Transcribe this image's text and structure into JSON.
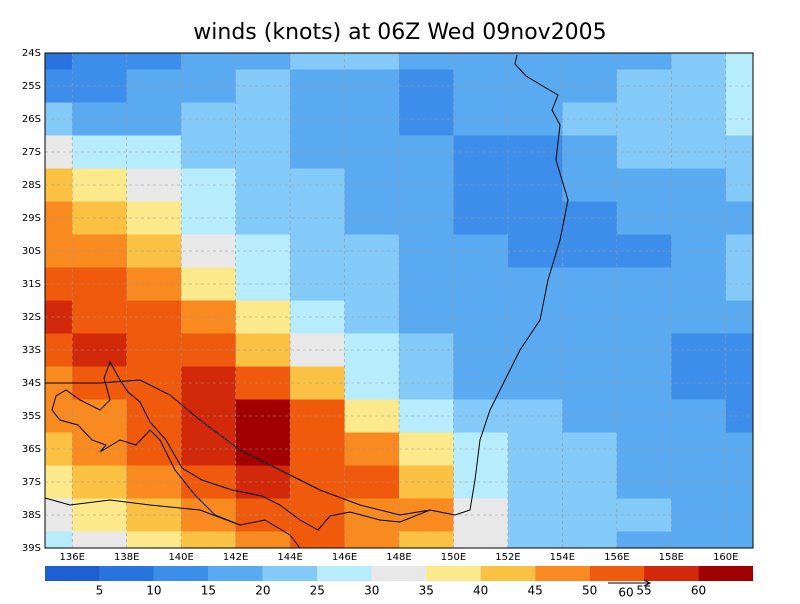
{
  "chart_data": {
    "type": "heatmap",
    "title": "winds (knots) at 06Z Wed 09nov2005",
    "x": [
      135,
      137,
      139,
      141,
      143,
      145,
      147,
      149,
      151,
      153,
      155,
      157,
      159,
      161
    ],
    "y": [
      -24,
      -25,
      -26,
      -27,
      -28,
      -29,
      -30,
      -31,
      -32,
      -33,
      -34,
      -35,
      -36,
      -37,
      -38,
      -39
    ],
    "values": [
      [
        8,
        10,
        12,
        15,
        18,
        20,
        22,
        18,
        15,
        15,
        15,
        18,
        22,
        25
      ],
      [
        10,
        12,
        15,
        18,
        20,
        18,
        15,
        12,
        15,
        15,
        18,
        20,
        22,
        25
      ],
      [
        22,
        18,
        18,
        20,
        20,
        18,
        15,
        12,
        15,
        15,
        20,
        20,
        22,
        25
      ],
      [
        32,
        28,
        25,
        22,
        20,
        18,
        15,
        15,
        12,
        12,
        18,
        20,
        20,
        22
      ],
      [
        42,
        38,
        32,
        28,
        22,
        20,
        18,
        15,
        12,
        10,
        15,
        18,
        18,
        20
      ],
      [
        45,
        42,
        36,
        28,
        22,
        20,
        18,
        15,
        12,
        10,
        12,
        15,
        15,
        18
      ],
      [
        48,
        45,
        40,
        30,
        25,
        22,
        20,
        18,
        15,
        12,
        12,
        12,
        15,
        20
      ],
      [
        52,
        50,
        45,
        38,
        28,
        22,
        20,
        18,
        15,
        15,
        15,
        15,
        18,
        20
      ],
      [
        55,
        52,
        50,
        45,
        35,
        25,
        22,
        18,
        18,
        18,
        18,
        15,
        15,
        15
      ],
      [
        52,
        55,
        52,
        50,
        42,
        30,
        25,
        20,
        18,
        18,
        18,
        15,
        12,
        12
      ],
      [
        48,
        52,
        52,
        58,
        52,
        40,
        28,
        22,
        18,
        18,
        18,
        15,
        12,
        10
      ],
      [
        45,
        48,
        52,
        55,
        60,
        50,
        38,
        28,
        22,
        20,
        18,
        18,
        15,
        12
      ],
      [
        40,
        45,
        50,
        55,
        62,
        52,
        48,
        35,
        25,
        20,
        20,
        18,
        15,
        15
      ],
      [
        35,
        40,
        48,
        52,
        55,
        52,
        50,
        40,
        28,
        20,
        20,
        18,
        18,
        15
      ],
      [
        30,
        35,
        40,
        45,
        52,
        52,
        48,
        45,
        30,
        22,
        20,
        20,
        18,
        18
      ],
      [
        28,
        32,
        38,
        42,
        48,
        50,
        45,
        40,
        30,
        22,
        20,
        18,
        18,
        18
      ]
    ],
    "xlim": [
      135,
      161
    ],
    "ylim": [
      -39,
      -24
    ],
    "xticks": [
      {
        "value": 136,
        "label": "136E"
      },
      {
        "value": 138,
        "label": "138E"
      },
      {
        "value": 140,
        "label": "140E"
      },
      {
        "value": 142,
        "label": "142E"
      },
      {
        "value": 144,
        "label": "144E"
      },
      {
        "value": 146,
        "label": "146E"
      },
      {
        "value": 148,
        "label": "148E"
      },
      {
        "value": 150,
        "label": "150E"
      },
      {
        "value": 152,
        "label": "152E"
      },
      {
        "value": 154,
        "label": "154E"
      },
      {
        "value": 156,
        "label": "156E"
      },
      {
        "value": 158,
        "label": "158E"
      },
      {
        "value": 160,
        "label": "160E"
      }
    ],
    "yticks": [
      {
        "value": -24,
        "label": "24S"
      },
      {
        "value": -25,
        "label": "25S"
      },
      {
        "value": -26,
        "label": "26S"
      },
      {
        "value": -27,
        "label": "27S"
      },
      {
        "value": -28,
        "label": "28S"
      },
      {
        "value": -29,
        "label": "29S"
      },
      {
        "value": -30,
        "label": "30S"
      },
      {
        "value": -31,
        "label": "31S"
      },
      {
        "value": -32,
        "label": "32S"
      },
      {
        "value": -33,
        "label": "33S"
      },
      {
        "value": -34,
        "label": "34S"
      },
      {
        "value": -35,
        "label": "35S"
      },
      {
        "value": -36,
        "label": "36S"
      },
      {
        "value": -37,
        "label": "37S"
      },
      {
        "value": -38,
        "label": "38S"
      },
      {
        "value": -39,
        "label": "39S"
      }
    ],
    "grid": true,
    "levels": [
      5,
      10,
      15,
      20,
      25,
      30,
      35,
      40,
      45,
      50,
      55,
      60
    ],
    "colors": [
      "#1e5fd2",
      "#2a74df",
      "#3d8deb",
      "#5aaaf2",
      "#84caf9",
      "#b6ecfb",
      "#e8e8e8",
      "#fbe98c",
      "#fbc142",
      "#f88a20",
      "#f05a0c",
      "#d2290a",
      "#a00000"
    ],
    "reference_vector": 60
  }
}
